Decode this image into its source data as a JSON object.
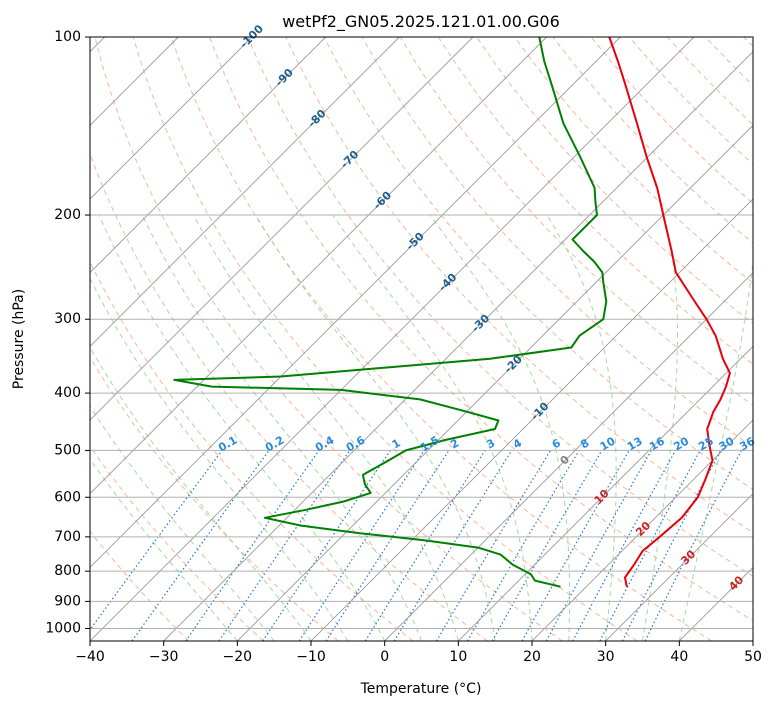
{
  "chart_data": {
    "type": "line",
    "subtype": "skew-t log-p",
    "title": "wetPf2_GN05.2025.121.01.00.G06",
    "xlabel": "Temperature (°C)",
    "ylabel": "Pressure (hPa)",
    "xlim": [
      -40,
      50
    ],
    "ylim": [
      1050,
      100
    ],
    "yscale": "log",
    "x_ticks": [
      -40,
      -30,
      -20,
      -10,
      0,
      10,
      20,
      30,
      40,
      50
    ],
    "y_ticks": [
      1000,
      900,
      800,
      700,
      600,
      500,
      400,
      300,
      200,
      100
    ],
    "grid": true,
    "colors": {
      "temperature": "#e8000b",
      "dewpoint": "#008000",
      "isotherm": "#999999",
      "dry_adiabat": "#f4a582",
      "moist_adiabat": "#8fcf8f",
      "mixing_ratio": "#1f77d4",
      "iso_label_negative": "#1f5f8f",
      "iso_label_zero": "#808080",
      "iso_label_positive": "#cc2222",
      "mixing_label": "#2a8ae0"
    },
    "isotherm_labels": [
      "-100",
      "-90",
      "-80",
      "-70",
      "-60",
      "-50",
      "-40",
      "-30",
      "-20",
      "-10",
      "0",
      "10",
      "20",
      "30",
      "40"
    ],
    "isotherm_label_values": [
      -100,
      -90,
      -80,
      -70,
      -60,
      -50,
      -40,
      -30,
      -20,
      -10,
      0,
      10,
      20,
      30,
      40
    ],
    "mixing_ratio_labels": [
      "0.1",
      "0.2",
      "0.4",
      "0.6",
      "1",
      "1.5",
      "2",
      "3",
      "4",
      "6",
      "8",
      "10",
      "13",
      "16",
      "20",
      "25",
      "30",
      "36"
    ],
    "mixing_ratio_values": [
      0.1,
      0.2,
      0.4,
      0.6,
      1,
      1.5,
      2,
      3,
      4,
      6,
      8,
      10,
      13,
      16,
      20,
      25,
      30,
      36
    ],
    "series": [
      {
        "key": "temperature",
        "points": [
          [
            850,
            25.5
          ],
          [
            820,
            24.0
          ],
          [
            780,
            23.5
          ],
          [
            740,
            22.8
          ],
          [
            700,
            23.2
          ],
          [
            650,
            23.6
          ],
          [
            600,
            23.0
          ],
          [
            560,
            21.6
          ],
          [
            520,
            20.0
          ],
          [
            490,
            17.5
          ],
          [
            460,
            15.0
          ],
          [
            430,
            13.5
          ],
          [
            410,
            12.8
          ],
          [
            390,
            11.8
          ],
          [
            370,
            10.5
          ],
          [
            350,
            7.6
          ],
          [
            320,
            3.5
          ],
          [
            300,
            0.0
          ],
          [
            280,
            -4.0
          ],
          [
            250,
            -10.5
          ],
          [
            230,
            -14.0
          ],
          [
            200,
            -20.0
          ],
          [
            180,
            -24.5
          ],
          [
            160,
            -30.0
          ],
          [
            140,
            -36.0
          ],
          [
            120,
            -43.0
          ],
          [
            110,
            -47.0
          ],
          [
            100,
            -51.5
          ]
        ]
      },
      {
        "key": "dewpoint",
        "points": [
          [
            850,
            16.5
          ],
          [
            830,
            12.2
          ],
          [
            810,
            10.8
          ],
          [
            780,
            7.0
          ],
          [
            750,
            4.0
          ],
          [
            730,
            0.0
          ],
          [
            710,
            -8.0
          ],
          [
            690,
            -18.0
          ],
          [
            670,
            -27.0
          ],
          [
            650,
            -33.0
          ],
          [
            630,
            -28.5
          ],
          [
            610,
            -24.5
          ],
          [
            590,
            -22.0
          ],
          [
            570,
            -24.0
          ],
          [
            550,
            -25.5
          ],
          [
            520,
            -24.0
          ],
          [
            500,
            -23.0
          ],
          [
            480,
            -19.0
          ],
          [
            460,
            -13.8
          ],
          [
            445,
            -14.5
          ],
          [
            430,
            -20.0
          ],
          [
            410,
            -28.0
          ],
          [
            395,
            -40.0
          ],
          [
            390,
            -58.0
          ],
          [
            380,
            -64.0
          ],
          [
            375,
            -50.0
          ],
          [
            365,
            -40.0
          ],
          [
            350,
            -24.0
          ],
          [
            335,
            -14.5
          ],
          [
            320,
            -15.0
          ],
          [
            300,
            -14.0
          ],
          [
            280,
            -16.0
          ],
          [
            260,
            -19.0
          ],
          [
            250,
            -20.5
          ],
          [
            240,
            -23.0
          ],
          [
            230,
            -26.0
          ],
          [
            220,
            -29.0
          ],
          [
            210,
            -29.0
          ],
          [
            200,
            -29.0
          ],
          [
            190,
            -31.0
          ],
          [
            180,
            -33.0
          ],
          [
            160,
            -39.0
          ],
          [
            140,
            -46.0
          ],
          [
            120,
            -53.0
          ],
          [
            110,
            -57.0
          ],
          [
            100,
            -61.0
          ]
        ]
      }
    ]
  }
}
